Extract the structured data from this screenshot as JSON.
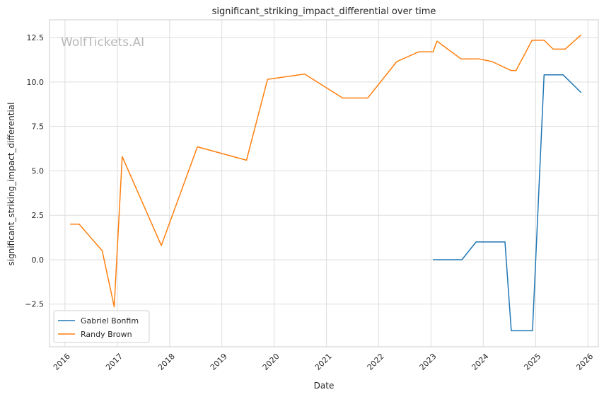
{
  "chart_data": {
    "type": "line",
    "title": "significant_striking_impact_differential over time",
    "xlabel": "Date",
    "ylabel": "significant_striking_impact_differential",
    "watermark": "WolfTickets.AI",
    "x_ticks": [
      "2016",
      "2017",
      "2018",
      "2019",
      "2020",
      "2021",
      "2022",
      "2023",
      "2024",
      "2025",
      "2026"
    ],
    "y_ticks": [
      "−2.5",
      "0.0",
      "2.5",
      "5.0",
      "7.5",
      "10.0",
      "12.5"
    ],
    "y_tick_values": [
      -2.5,
      0,
      2.5,
      5,
      7.5,
      10,
      12.5
    ],
    "xlim": [
      "2015-09-15",
      "2026-03-15"
    ],
    "ylim": [
      -4.9,
      13.5
    ],
    "grid": true,
    "legend_position": "lower-left",
    "series": [
      {
        "name": "Gabriel Bonfim",
        "color": "#1f77b4",
        "points": [
          {
            "x": "2023-01-15",
            "y": 0.0
          },
          {
            "x": "2023-05-20",
            "y": 0.0
          },
          {
            "x": "2023-08-05",
            "y": 0.0
          },
          {
            "x": "2023-11-12",
            "y": 1.0
          },
          {
            "x": "2024-06-01",
            "y": 1.0
          },
          {
            "x": "2024-07-15",
            "y": -4.0
          },
          {
            "x": "2024-12-10",
            "y": -4.0
          },
          {
            "x": "2025-03-01",
            "y": 10.4
          },
          {
            "x": "2025-07-12",
            "y": 10.4
          },
          {
            "x": "2025-11-15",
            "y": 9.4
          }
        ]
      },
      {
        "name": "Randy Brown",
        "color": "#ff7f0e",
        "points": [
          {
            "x": "2016-02-06",
            "y": 2.0
          },
          {
            "x": "2016-04-09",
            "y": 2.0
          },
          {
            "x": "2016-09-17",
            "y": 0.5
          },
          {
            "x": "2016-12-10",
            "y": -2.65
          },
          {
            "x": "2017-02-04",
            "y": 5.8
          },
          {
            "x": "2017-11-04",
            "y": 0.8
          },
          {
            "x": "2018-07-14",
            "y": 6.35
          },
          {
            "x": "2019-06-22",
            "y": 5.6
          },
          {
            "x": "2019-11-16",
            "y": 10.15
          },
          {
            "x": "2020-08-01",
            "y": 10.45
          },
          {
            "x": "2021-04-24",
            "y": 9.1
          },
          {
            "x": "2021-10-16",
            "y": 9.1
          },
          {
            "x": "2022-05-07",
            "y": 11.15
          },
          {
            "x": "2022-10-08",
            "y": 11.7
          },
          {
            "x": "2023-01-15",
            "y": 11.7
          },
          {
            "x": "2023-02-12",
            "y": 12.3
          },
          {
            "x": "2023-07-29",
            "y": 11.3
          },
          {
            "x": "2023-12-02",
            "y": 11.3
          },
          {
            "x": "2024-03-02",
            "y": 11.15
          },
          {
            "x": "2024-07-13",
            "y": 10.65
          },
          {
            "x": "2024-08-17",
            "y": 10.65
          },
          {
            "x": "2024-12-07",
            "y": 12.35
          },
          {
            "x": "2025-03-01",
            "y": 12.35
          },
          {
            "x": "2025-05-03",
            "y": 11.85
          },
          {
            "x": "2025-07-26",
            "y": 11.85
          },
          {
            "x": "2025-11-15",
            "y": 12.65
          }
        ]
      }
    ]
  }
}
